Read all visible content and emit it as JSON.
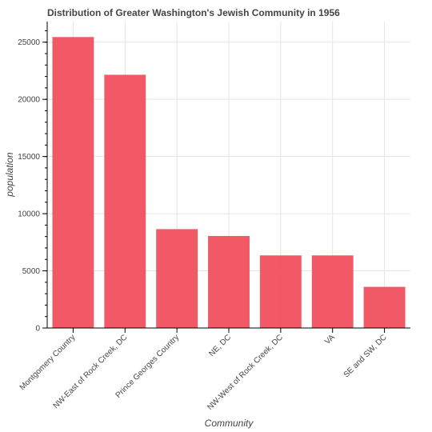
{
  "chart_data": {
    "type": "bar",
    "title": "Distribution of Greater Washington's Jewish Community in 1956",
    "xlabel": "Community",
    "ylabel": "population",
    "categories": [
      "Montgomery Country",
      "NW-East of Rock Creek, DC",
      "Prince Georges Country",
      "NE, DC",
      "NW-West of Rock Creek, DC",
      "VA",
      "SE and SW, DC"
    ],
    "values": [
      25450,
      22150,
      8650,
      8050,
      6350,
      6350,
      3600
    ],
    "ylim": [
      0,
      26800
    ],
    "yticks": [
      0,
      5000,
      10000,
      15000,
      20000,
      25000
    ],
    "grid": true,
    "bar_color": "#f0505f"
  }
}
